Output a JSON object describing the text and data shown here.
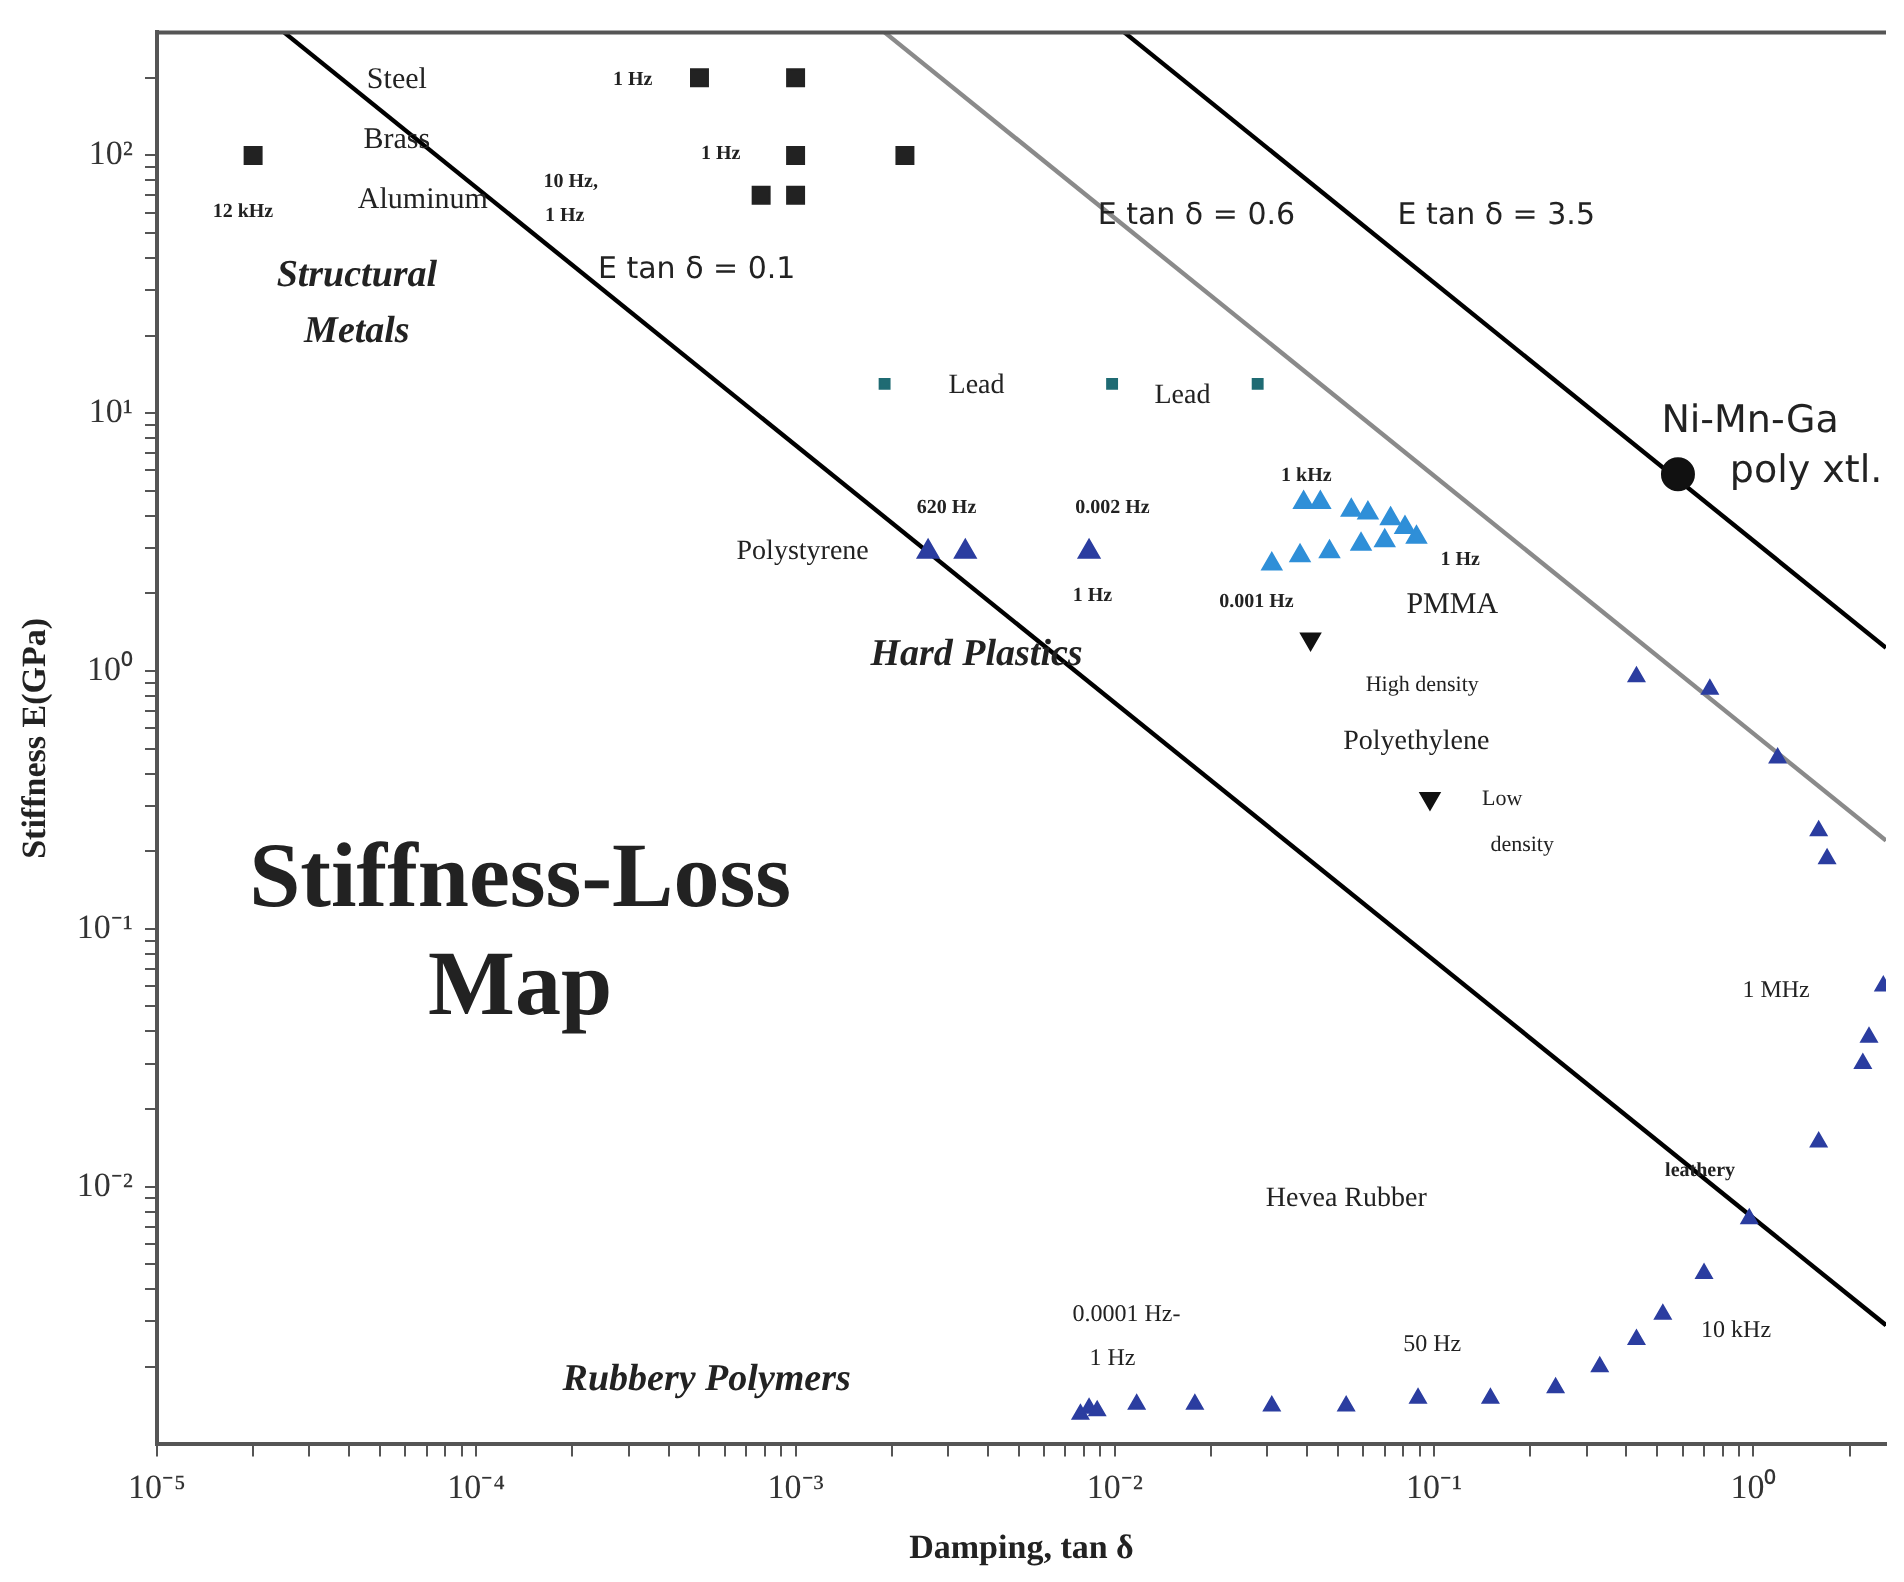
{
  "chart_data": {
    "type": "scatter",
    "title": "Stiffness-Loss Map",
    "xlabel": "Damping, tan δ",
    "ylabel": "Stiffness E(GPa)",
    "log": "xy",
    "grid": false,
    "legend": false,
    "xlim": [
      1e-05,
      2.6
    ],
    "ylim": [
      0.001,
      300
    ],
    "xticks": [
      {
        "value": 1e-05,
        "label": "10⁻⁵"
      },
      {
        "value": 2e-05,
        "label": null
      },
      {
        "value": 3e-05,
        "label": null
      },
      {
        "value": 4e-05,
        "label": null
      },
      {
        "value": 5e-05,
        "label": null
      },
      {
        "value": 6e-05,
        "label": null
      },
      {
        "value": 7e-05,
        "label": null
      },
      {
        "value": 8e-05,
        "label": null
      },
      {
        "value": 9e-05,
        "label": null
      },
      {
        "value": 0.0001,
        "label": "10⁻⁴"
      },
      {
        "value": 0.0002,
        "label": null
      },
      {
        "value": 0.0003,
        "label": null
      },
      {
        "value": 0.0004,
        "label": null
      },
      {
        "value": 0.0005,
        "label": null
      },
      {
        "value": 0.0006,
        "label": null
      },
      {
        "value": 0.0007,
        "label": null
      },
      {
        "value": 0.0008,
        "label": null
      },
      {
        "value": 0.0009,
        "label": null
      },
      {
        "value": 0.001,
        "label": "10⁻³"
      },
      {
        "value": 0.002,
        "label": null
      },
      {
        "value": 0.003,
        "label": null
      },
      {
        "value": 0.004,
        "label": null
      },
      {
        "value": 0.005,
        "label": null
      },
      {
        "value": 0.006,
        "label": null
      },
      {
        "value": 0.007,
        "label": null
      },
      {
        "value": 0.008,
        "label": null
      },
      {
        "value": 0.009,
        "label": null
      },
      {
        "value": 0.01,
        "label": "10⁻²"
      },
      {
        "value": 0.02,
        "label": null
      },
      {
        "value": 0.03,
        "label": null
      },
      {
        "value": 0.04,
        "label": null
      },
      {
        "value": 0.05,
        "label": null
      },
      {
        "value": 0.06,
        "label": null
      },
      {
        "value": 0.07,
        "label": null
      },
      {
        "value": 0.08,
        "label": null
      },
      {
        "value": 0.09,
        "label": null
      },
      {
        "value": 0.1,
        "label": "10⁻¹"
      },
      {
        "value": 0.2,
        "label": null
      },
      {
        "value": 0.3,
        "label": null
      },
      {
        "value": 0.4,
        "label": null
      },
      {
        "value": 0.5,
        "label": null
      },
      {
        "value": 0.6,
        "label": null
      },
      {
        "value": 0.7,
        "label": null
      },
      {
        "value": 0.8,
        "label": null
      },
      {
        "value": 0.9,
        "label": null
      },
      {
        "value": 1,
        "label": "10⁰"
      },
      {
        "value": 2,
        "label": null
      }
    ],
    "yticks": [
      {
        "value": 0.002,
        "label": null
      },
      {
        "value": 0.003,
        "label": null
      },
      {
        "value": 0.004,
        "label": null
      },
      {
        "value": 0.005,
        "label": null
      },
      {
        "value": 0.006,
        "label": null
      },
      {
        "value": 0.007,
        "label": null
      },
      {
        "value": 0.008,
        "label": null
      },
      {
        "value": 0.009,
        "label": null
      },
      {
        "value": 0.01,
        "label": "10⁻²"
      },
      {
        "value": 0.02,
        "label": null
      },
      {
        "value": 0.03,
        "label": null
      },
      {
        "value": 0.04,
        "label": null
      },
      {
        "value": 0.05,
        "label": null
      },
      {
        "value": 0.06,
        "label": null
      },
      {
        "value": 0.07,
        "label": null
      },
      {
        "value": 0.08,
        "label": null
      },
      {
        "value": 0.09,
        "label": null
      },
      {
        "value": 0.1,
        "label": "10⁻¹"
      },
      {
        "value": 0.2,
        "label": null
      },
      {
        "value": 0.3,
        "label": null
      },
      {
        "value": 0.4,
        "label": null
      },
      {
        "value": 0.5,
        "label": null
      },
      {
        "value": 0.6,
        "label": null
      },
      {
        "value": 0.7,
        "label": null
      },
      {
        "value": 0.8,
        "label": null
      },
      {
        "value": 0.9,
        "label": null
      },
      {
        "value": 1,
        "label": "10⁰"
      },
      {
        "value": 2,
        "label": null
      },
      {
        "value": 3,
        "label": null
      },
      {
        "value": 4,
        "label": null
      },
      {
        "value": 5,
        "label": null
      },
      {
        "value": 6,
        "label": null
      },
      {
        "value": 7,
        "label": null
      },
      {
        "value": 8,
        "label": null
      },
      {
        "value": 9,
        "label": null
      },
      {
        "value": 10,
        "label": "10¹"
      },
      {
        "value": 20,
        "label": null
      },
      {
        "value": 30,
        "label": null
      },
      {
        "value": 40,
        "label": null
      },
      {
        "value": 50,
        "label": null
      },
      {
        "value": 60,
        "label": null
      },
      {
        "value": 70,
        "label": null
      },
      {
        "value": 80,
        "label": null
      },
      {
        "value": 90,
        "label": null
      },
      {
        "value": 100,
        "label": "10²"
      },
      {
        "value": 200,
        "label": null
      }
    ],
    "series": [
      {
        "marker": "square",
        "color": "#222222",
        "x": [
          2e-05,
          0.0005,
          0.001,
          0.001,
          0.0022,
          0.00078,
          0.001
        ],
        "values": [
          100,
          200,
          200,
          100,
          100,
          70,
          70
        ]
      },
      {
        "marker": "square",
        "color": "#1f6b73",
        "x": [
          0.0019,
          0.0098,
          0.028
        ],
        "values": [
          13,
          13,
          13
        ]
      },
      {
        "marker": "triangle",
        "color": "#2b3da0",
        "x": [
          0.0026,
          0.0034,
          0.0083
        ],
        "values": [
          2.9,
          2.9,
          2.9
        ]
      },
      {
        "marker": "triangle",
        "color": "#2f8fd8",
        "x": [
          0.039,
          0.044,
          0.055,
          0.062,
          0.073,
          0.081,
          0.088,
          0.031,
          0.038,
          0.047,
          0.059,
          0.07
        ],
        "values": [
          4.5,
          4.5,
          4.2,
          4.1,
          3.9,
          3.6,
          3.3,
          2.6,
          2.8,
          2.9,
          3.1,
          3.2
        ]
      },
      {
        "marker": "triangle",
        "color": "#111111",
        "x": [
          0.041,
          0.097
        ],
        "values": [
          1.33,
          0.32
        ]
      },
      {
        "marker": "triangle",
        "color": "#2b3da0",
        "x": [
          0.0078,
          0.0083,
          0.0088,
          0.0117,
          0.0178,
          0.031,
          0.053,
          0.089,
          0.15,
          0.24,
          0.33,
          0.43,
          0.52,
          0.7,
          0.97,
          1.6,
          2.2,
          2.3,
          2.55,
          1.7,
          1.6,
          1.19,
          0.73,
          0.43
        ],
        "values": [
          0.00131,
          0.00138,
          0.00135,
          0.00143,
          0.00143,
          0.00141,
          0.00141,
          0.00151,
          0.00151,
          0.00166,
          0.002,
          0.00255,
          0.0032,
          0.0046,
          0.0075,
          0.0149,
          0.03,
          0.038,
          0.06,
          0.187,
          0.24,
          0.46,
          0.85,
          0.95
        ]
      },
      {
        "marker": "circle",
        "color": "#111111",
        "x": [
          0.58
        ],
        "values": [
          5.8
        ]
      },
      {
        "type": "line",
        "marker": "none",
        "line_style": "solid",
        "color": "#000000",
        "x": [
          2.5e-05,
          2.6
        ],
        "values": [
          300,
          0.0029
        ]
      },
      {
        "type": "line",
        "marker": "none",
        "line_style": "solid",
        "color": "#000000",
        "x": [
          0.0107,
          2.6
        ],
        "values": [
          300,
          1.23
        ]
      },
      {
        "type": "line",
        "marker": "none",
        "line_style": "solid",
        "color": "#8a8a8a",
        "x": [
          0.0019,
          2.6
        ],
        "values": [
          300,
          0.22
        ]
      }
    ],
    "annotations": [
      "Steel",
      "Brass",
      "Aluminum",
      "12 kHz",
      "1 Hz",
      "1 Hz",
      "10 Hz,",
      "1 Hz",
      "E tan δ = 0.1",
      "Structural",
      "Metals",
      "E tan δ = 0.6",
      "E tan δ = 3.5",
      "Lead",
      "Lead",
      "Ni-Mn-Ga",
      "poly xtl.",
      "620 Hz",
      "0.002 Hz",
      "Polystyrene",
      "1 kHz",
      "1 Hz",
      "1 Hz",
      "0.001 Hz",
      "PMMA",
      "Hard Plastics",
      "High density",
      "Polyethylene",
      "Low",
      "density",
      "1 MHz",
      "leathery",
      "Hevea Rubber",
      "0.0001 Hz-",
      "1 Hz",
      "50 Hz",
      "10 kHz",
      "Rubbery Polymers"
    ]
  }
}
